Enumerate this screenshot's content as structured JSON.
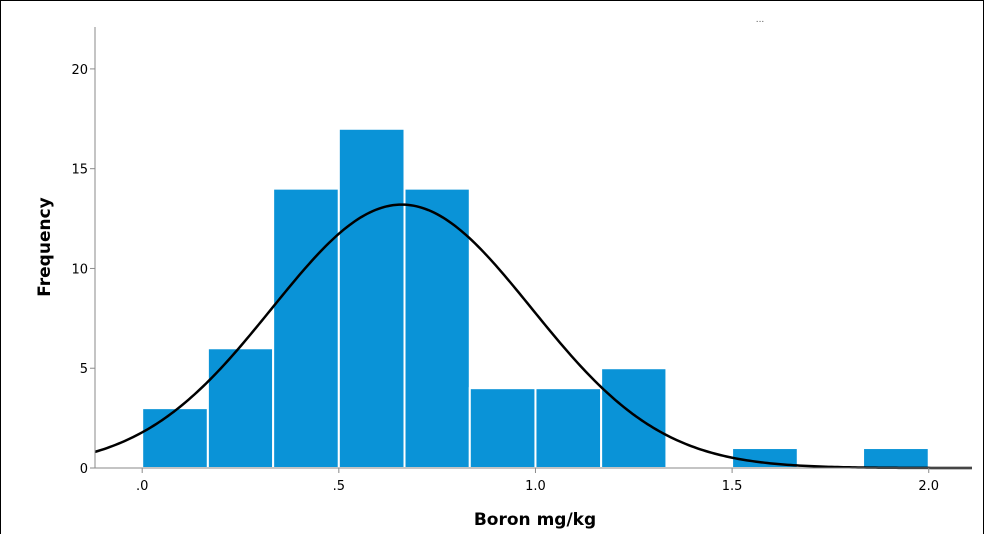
{
  "chart_data": {
    "type": "bar",
    "subtype": "histogram",
    "xlabel": "Boron mg/kg",
    "ylabel": "Frequency",
    "corner_note": "...",
    "xlim": [
      -0.12,
      2.11
    ],
    "ylim": [
      0,
      22.1
    ],
    "x_ticks": [
      {
        "value": 0.0,
        "label": ".0"
      },
      {
        "value": 0.5,
        "label": ".5"
      },
      {
        "value": 1.0,
        "label": "1.0"
      },
      {
        "value": 1.5,
        "label": "1.5"
      },
      {
        "value": 2.0,
        "label": "2.0"
      }
    ],
    "y_ticks": [
      {
        "value": 0,
        "label": "0"
      },
      {
        "value": 5,
        "label": "5"
      },
      {
        "value": 10,
        "label": "10"
      },
      {
        "value": 15,
        "label": "15"
      },
      {
        "value": 20,
        "label": "20"
      }
    ],
    "bins": [
      {
        "start": 0.0,
        "end": 0.167,
        "count": 3
      },
      {
        "start": 0.167,
        "end": 0.333,
        "count": 6
      },
      {
        "start": 0.333,
        "end": 0.5,
        "count": 14
      },
      {
        "start": 0.5,
        "end": 0.667,
        "count": 17
      },
      {
        "start": 0.667,
        "end": 0.833,
        "count": 14
      },
      {
        "start": 0.833,
        "end": 1.0,
        "count": 4
      },
      {
        "start": 1.0,
        "end": 1.167,
        "count": 4
      },
      {
        "start": 1.167,
        "end": 1.333,
        "count": 5
      },
      {
        "start": 1.5,
        "end": 1.667,
        "count": 1
      },
      {
        "start": 1.833,
        "end": 2.0,
        "count": 1
      }
    ],
    "normal_curve": {
      "mean": 0.66,
      "std_dev": 0.33,
      "peak": 13.2
    },
    "grid": false,
    "colors": {
      "bar_fill": "#0a93d7",
      "bar_edge": "#ffffff",
      "curve": "#000000",
      "axis": "#8a8a8a"
    }
  }
}
